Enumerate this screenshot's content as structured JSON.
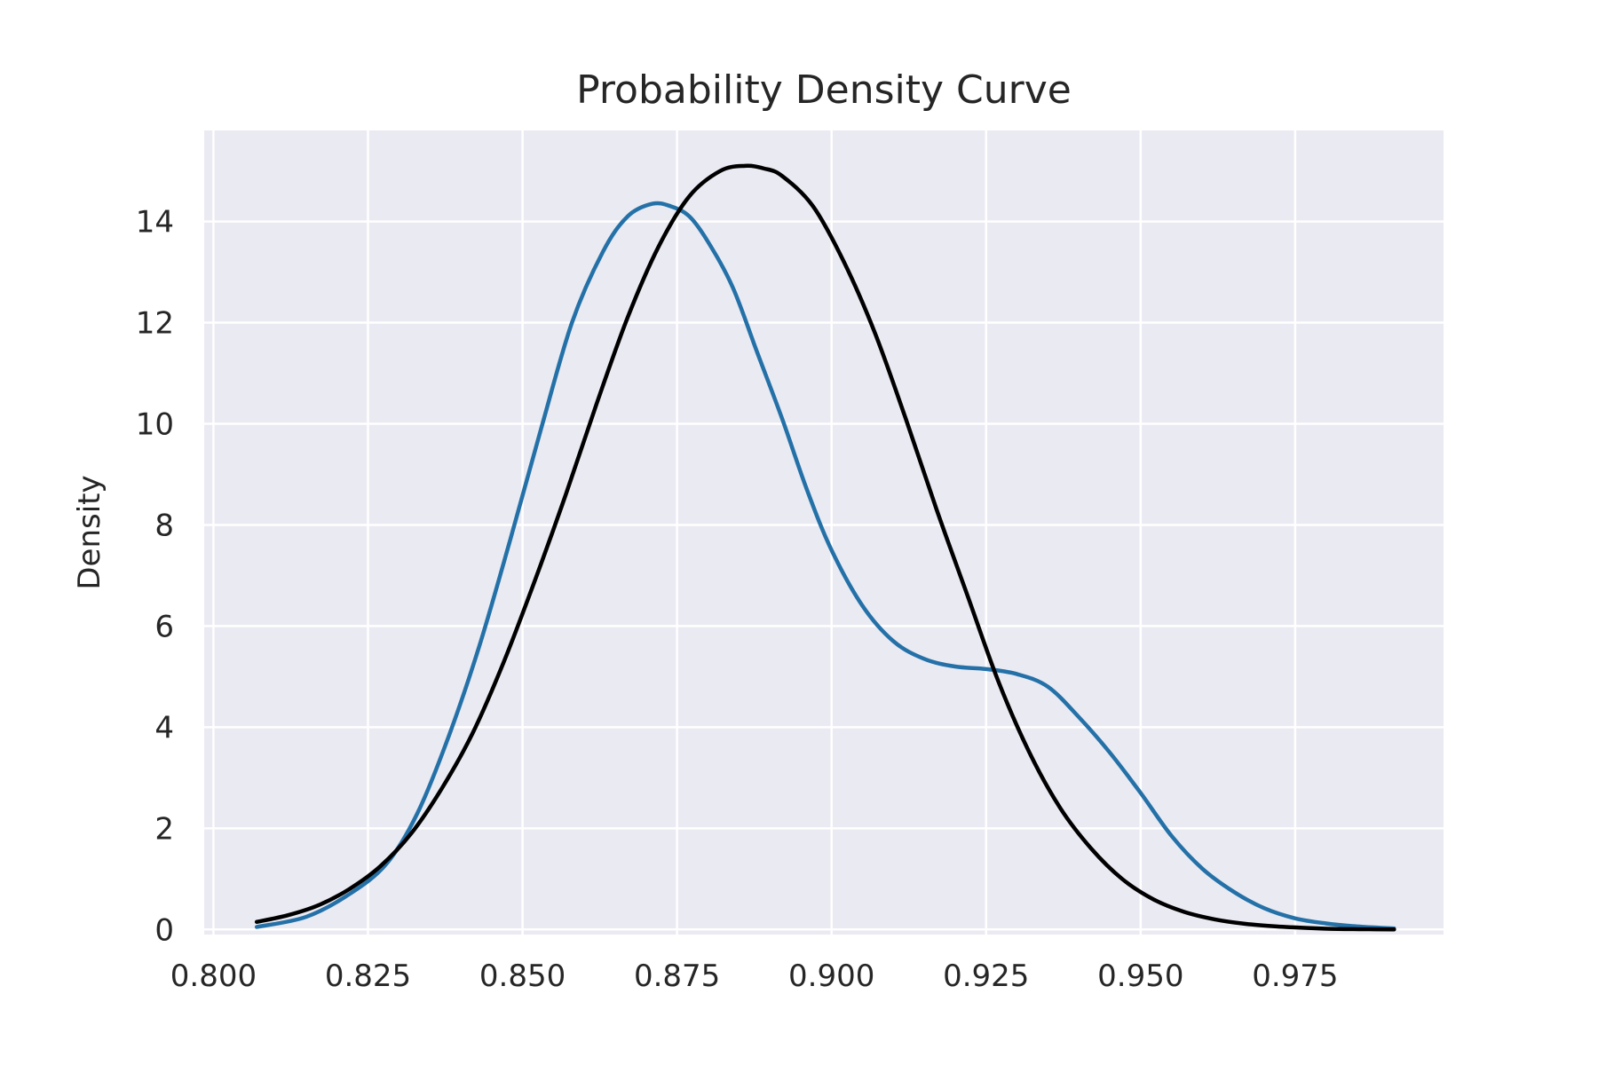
{
  "chart_data": {
    "type": "line",
    "title": "Probability Density Curve",
    "xlabel": "",
    "ylabel": "Density",
    "xlim": [
      0.7985,
      0.999
    ],
    "ylim": [
      -0.1,
      15.8
    ],
    "xticks": [
      0.8,
      0.825,
      0.85,
      0.875,
      0.9,
      0.925,
      0.95,
      0.975
    ],
    "xtick_labels": [
      "0.800",
      "0.825",
      "0.850",
      "0.875",
      "0.900",
      "0.925",
      "0.950",
      "0.975"
    ],
    "yticks": [
      0,
      2,
      4,
      6,
      8,
      10,
      12,
      14
    ],
    "ytick_labels": [
      "0",
      "2",
      "4",
      "6",
      "8",
      "10",
      "12",
      "14"
    ],
    "grid": true,
    "legend": "none",
    "colors": {
      "background": "#eaeaf2",
      "grid": "#ffffff",
      "kde": "#2471a8",
      "normal": "#000000"
    },
    "series": [
      {
        "color": "#2471a8",
        "x": [
          0.807,
          0.815,
          0.822,
          0.828,
          0.833,
          0.838,
          0.843,
          0.848,
          0.853,
          0.858,
          0.863,
          0.867,
          0.871,
          0.874,
          0.877,
          0.88,
          0.884,
          0.888,
          0.892,
          0.896,
          0.9,
          0.905,
          0.91,
          0.915,
          0.92,
          0.925,
          0.93,
          0.935,
          0.94,
          0.945,
          0.95,
          0.955,
          0.96,
          0.965,
          0.97,
          0.975,
          0.98,
          0.985,
          0.991
        ],
        "y": [
          0.05,
          0.25,
          0.7,
          1.3,
          2.3,
          3.8,
          5.6,
          7.7,
          9.9,
          12.0,
          13.4,
          14.1,
          14.35,
          14.3,
          14.1,
          13.6,
          12.7,
          11.4,
          10.1,
          8.7,
          7.5,
          6.4,
          5.7,
          5.35,
          5.2,
          5.15,
          5.05,
          4.8,
          4.2,
          3.5,
          2.7,
          1.85,
          1.2,
          0.75,
          0.42,
          0.22,
          0.12,
          0.06,
          0.02
        ]
      },
      {
        "color": "#000000",
        "x": [
          0.807,
          0.812,
          0.817,
          0.822,
          0.827,
          0.832,
          0.837,
          0.842,
          0.847,
          0.852,
          0.857,
          0.862,
          0.867,
          0.872,
          0.877,
          0.882,
          0.886,
          0.889,
          0.892,
          0.897,
          0.902,
          0.907,
          0.912,
          0.917,
          0.922,
          0.927,
          0.932,
          0.937,
          0.942,
          0.947,
          0.952,
          0.957,
          0.962,
          0.967,
          0.972,
          0.977,
          0.982,
          0.987,
          0.991
        ],
        "y": [
          0.15,
          0.28,
          0.48,
          0.8,
          1.25,
          1.9,
          2.8,
          3.9,
          5.3,
          6.9,
          8.6,
          10.4,
          12.1,
          13.5,
          14.5,
          15.0,
          15.1,
          15.05,
          14.9,
          14.3,
          13.2,
          11.8,
          10.1,
          8.3,
          6.6,
          4.9,
          3.5,
          2.4,
          1.6,
          1.0,
          0.6,
          0.35,
          0.2,
          0.11,
          0.06,
          0.03,
          0.01,
          0.005,
          0.0
        ]
      }
    ]
  }
}
